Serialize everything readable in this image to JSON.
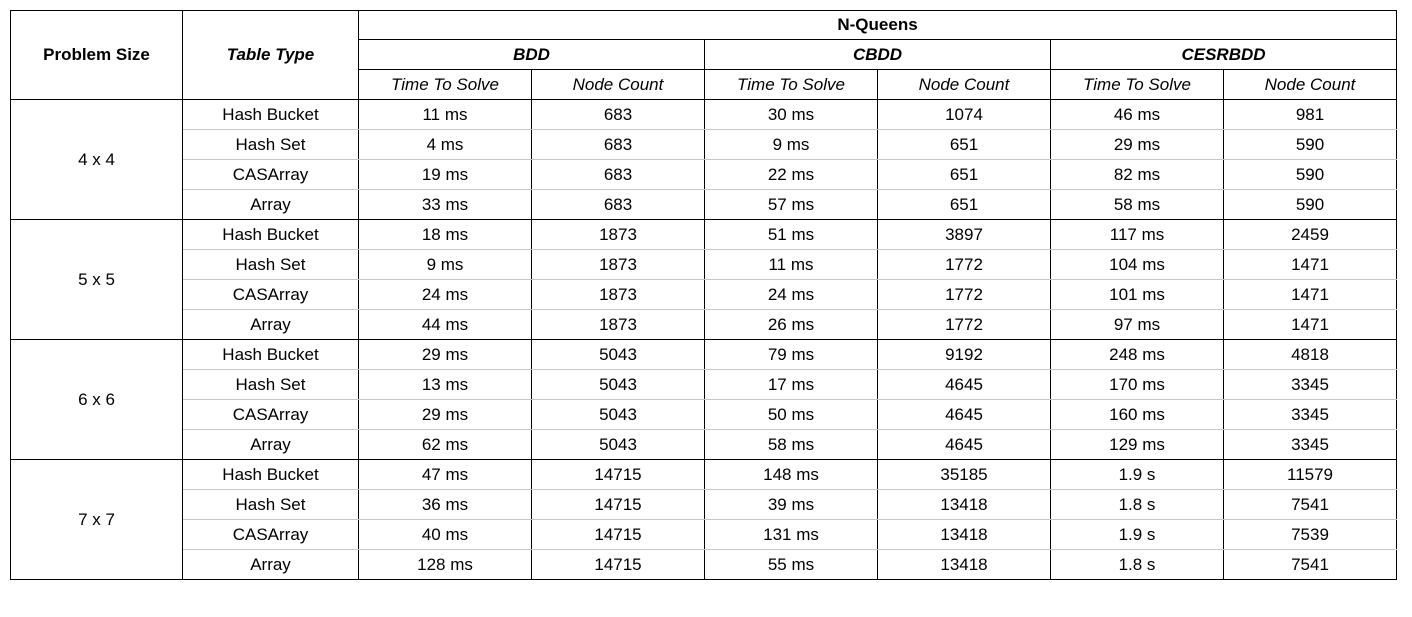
{
  "header": {
    "problem_size": "Problem Size",
    "table_type": "Table Type",
    "domain": "N-Queens",
    "algorithms": [
      "BDD",
      "CBDD",
      "CESRBDD"
    ],
    "time_label": "Time To Solve",
    "node_label": "Node Count"
  },
  "groups": [
    {
      "size": "4 x 4",
      "rows": [
        {
          "type": "Hash Bucket",
          "cells": [
            "11 ms",
            "683",
            "30 ms",
            "1074",
            "46 ms",
            "981"
          ]
        },
        {
          "type": "Hash Set",
          "cells": [
            "4 ms",
            "683",
            "9 ms",
            "651",
            "29 ms",
            "590"
          ]
        },
        {
          "type": "CASArray",
          "cells": [
            "19 ms",
            "683",
            "22 ms",
            "651",
            "82 ms",
            "590"
          ]
        },
        {
          "type": "Array",
          "cells": [
            "33 ms",
            "683",
            "57 ms",
            "651",
            "58 ms",
            "590"
          ]
        }
      ]
    },
    {
      "size": "5 x 5",
      "rows": [
        {
          "type": "Hash Bucket",
          "cells": [
            "18 ms",
            "1873",
            "51 ms",
            "3897",
            "117 ms",
            "2459"
          ]
        },
        {
          "type": "Hash Set",
          "cells": [
            "9 ms",
            "1873",
            "11 ms",
            "1772",
            "104 ms",
            "1471"
          ]
        },
        {
          "type": "CASArray",
          "cells": [
            "24 ms",
            "1873",
            "24 ms",
            "1772",
            "101 ms",
            "1471"
          ]
        },
        {
          "type": "Array",
          "cells": [
            "44 ms",
            "1873",
            "26 ms",
            "1772",
            "97 ms",
            "1471"
          ]
        }
      ]
    },
    {
      "size": "6 x 6",
      "rows": [
        {
          "type": "Hash Bucket",
          "cells": [
            "29 ms",
            "5043",
            "79 ms",
            "9192",
            "248 ms",
            "4818"
          ]
        },
        {
          "type": "Hash Set",
          "cells": [
            "13 ms",
            "5043",
            "17 ms",
            "4645",
            "170 ms",
            "3345"
          ]
        },
        {
          "type": "CASArray",
          "cells": [
            "29 ms",
            "5043",
            "50 ms",
            "4645",
            "160 ms",
            "3345"
          ]
        },
        {
          "type": "Array",
          "cells": [
            "62 ms",
            "5043",
            "58 ms",
            "4645",
            "129 ms",
            "3345"
          ]
        }
      ]
    },
    {
      "size": "7 x 7",
      "rows": [
        {
          "type": "Hash Bucket",
          "cells": [
            "47 ms",
            "14715",
            "148 ms",
            "35185",
            "1.9 s",
            "11579"
          ]
        },
        {
          "type": "Hash Set",
          "cells": [
            "36 ms",
            "14715",
            "39 ms",
            "13418",
            "1.8 s",
            "7541"
          ]
        },
        {
          "type": "CASArray",
          "cells": [
            "40 ms",
            "14715",
            "131 ms",
            "13418",
            "1.9 s",
            "7539"
          ]
        },
        {
          "type": "Array",
          "cells": [
            "128 ms",
            "14715",
            "55 ms",
            "13418",
            "1.8 s",
            "7541"
          ]
        }
      ]
    }
  ]
}
